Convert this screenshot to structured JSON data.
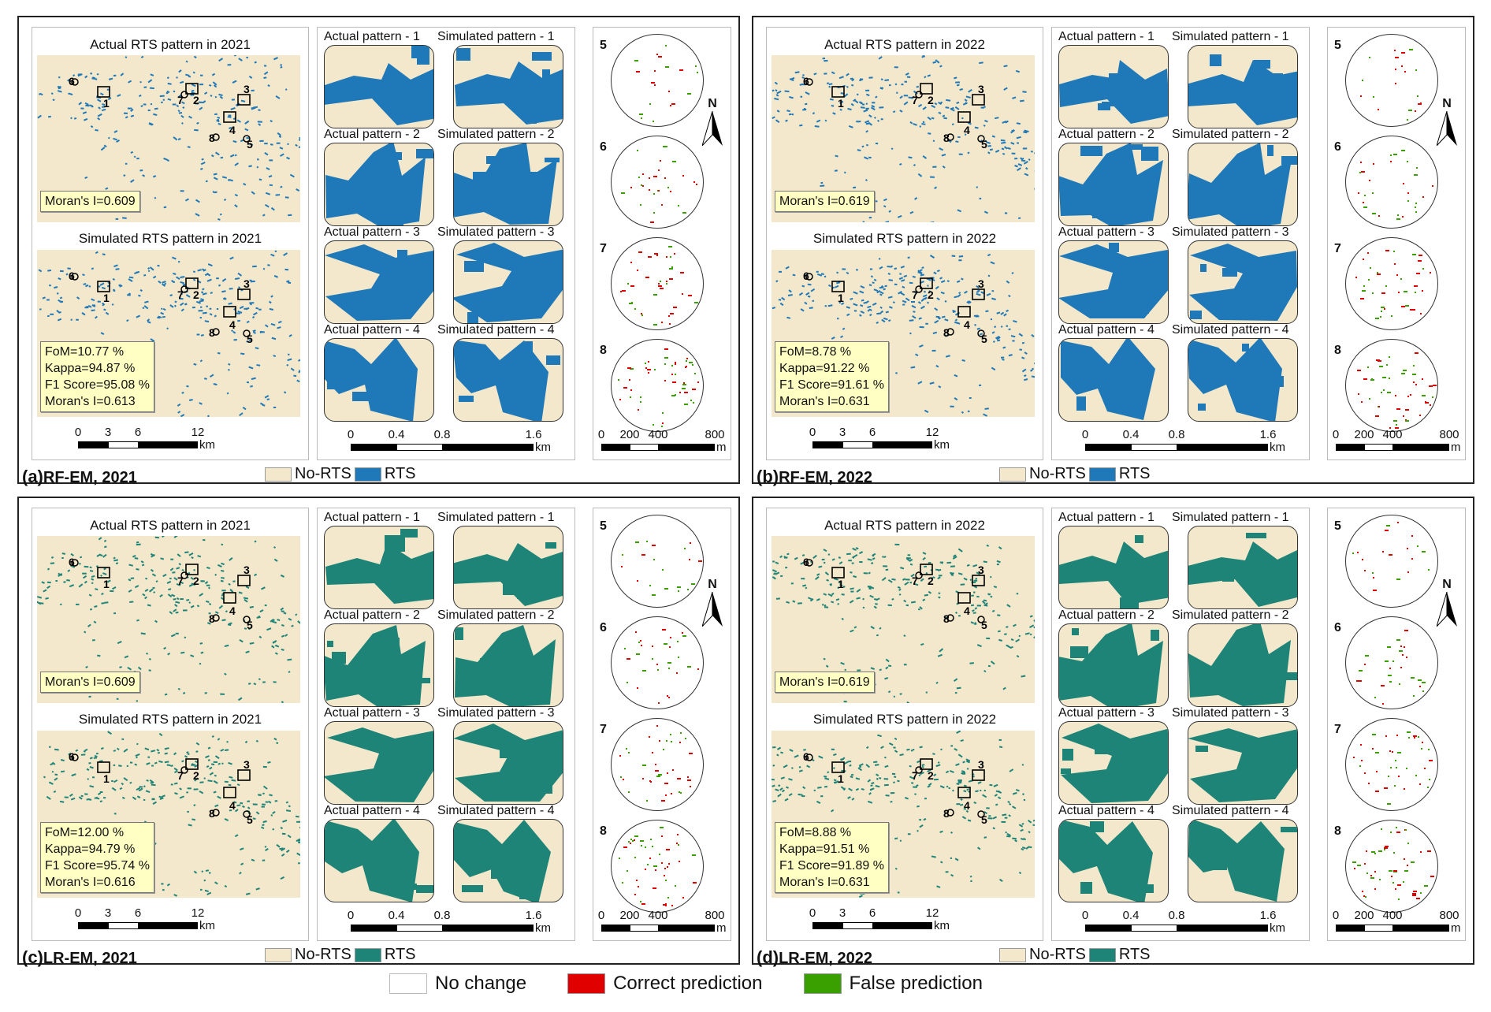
{
  "colors": {
    "no_rts": "#f3e8cc",
    "rf_rts": "#1f78b8",
    "lr_rts": "#1f8478",
    "correct": "#e00000",
    "false": "#3aa000",
    "no_change": "#ffffff",
    "stat_box": "#ffffc4"
  },
  "panels": [
    {
      "letter": "(a)",
      "name": "RF-EM, 2021",
      "model": "rf",
      "actual_title": "Actual RTS pattern in 2021",
      "simulated_title": "Simulated RTS pattern in 2021",
      "actual_moran": "Moran's I=0.609",
      "fom": "FoM=10.77 %",
      "kappa": "Kappa=94.87 %",
      "f1": "F1 Score=95.08 %",
      "sim_moran": "Moran's I=0.613"
    },
    {
      "letter": "(b)",
      "name": "RF-EM, 2022",
      "model": "rf",
      "actual_title": "Actual RTS pattern in 2022",
      "simulated_title": "Simulated RTS pattern in 2022",
      "actual_moran": "Moran's I=0.619",
      "fom": "FoM=8.78 %",
      "kappa": "Kappa=91.22 %",
      "f1": "F1 Score=91.61 %",
      "sim_moran": "Moran's I=0.631"
    },
    {
      "letter": "(c)",
      "name": "LR-EM, 2021",
      "model": "lr",
      "actual_title": "Actual RTS pattern in 2021",
      "simulated_title": "Simulated RTS pattern in 2021",
      "actual_moran": "Moran's I=0.609",
      "fom": "FoM=12.00 %",
      "kappa": "Kappa=94.79 %",
      "f1": "F1 Score=95.74 %",
      "sim_moran": "Moran's I=0.616"
    },
    {
      "letter": "(d)",
      "name": "LR-EM, 2022",
      "model": "lr",
      "actual_title": "Actual RTS pattern in 2022",
      "simulated_title": "Simulated RTS pattern in 2022",
      "actual_moran": "Moran's I=0.619",
      "fom": "FoM=8.88 %",
      "kappa": "Kappa=91.51 %",
      "f1": "F1 Score=91.89 %",
      "sim_moran": "Moran's I=0.631"
    }
  ],
  "pattern_labels": {
    "actual": [
      "Actual pattern - 1",
      "Actual pattern - 2",
      "Actual pattern - 3",
      "Actual pattern - 4"
    ],
    "simulated": [
      "Simulated pattern - 1",
      "Simulated pattern - 2",
      "Simulated pattern - 3",
      "Simulated pattern - 4"
    ]
  },
  "map_markers": [
    "1",
    "2",
    "3",
    "4",
    "5",
    "6",
    "7",
    "8"
  ],
  "circle_labels": [
    "5",
    "6",
    "7",
    "8"
  ],
  "north": "N",
  "scalebars": {
    "map": {
      "ticks": [
        "0",
        "3",
        "6",
        "12"
      ],
      "unit": "km"
    },
    "pattern": {
      "ticks": [
        "0",
        "0.4",
        "0.8",
        "1.6"
      ],
      "unit": "km"
    },
    "circle": {
      "ticks": [
        "0",
        "200",
        "400",
        "800"
      ],
      "unit": "m"
    }
  },
  "legend": {
    "no_rts": "No-RTS",
    "rts": "RTS"
  },
  "bottom_legend": {
    "no_change": "No change",
    "correct": "Correct prediction",
    "false": "False prediction"
  }
}
